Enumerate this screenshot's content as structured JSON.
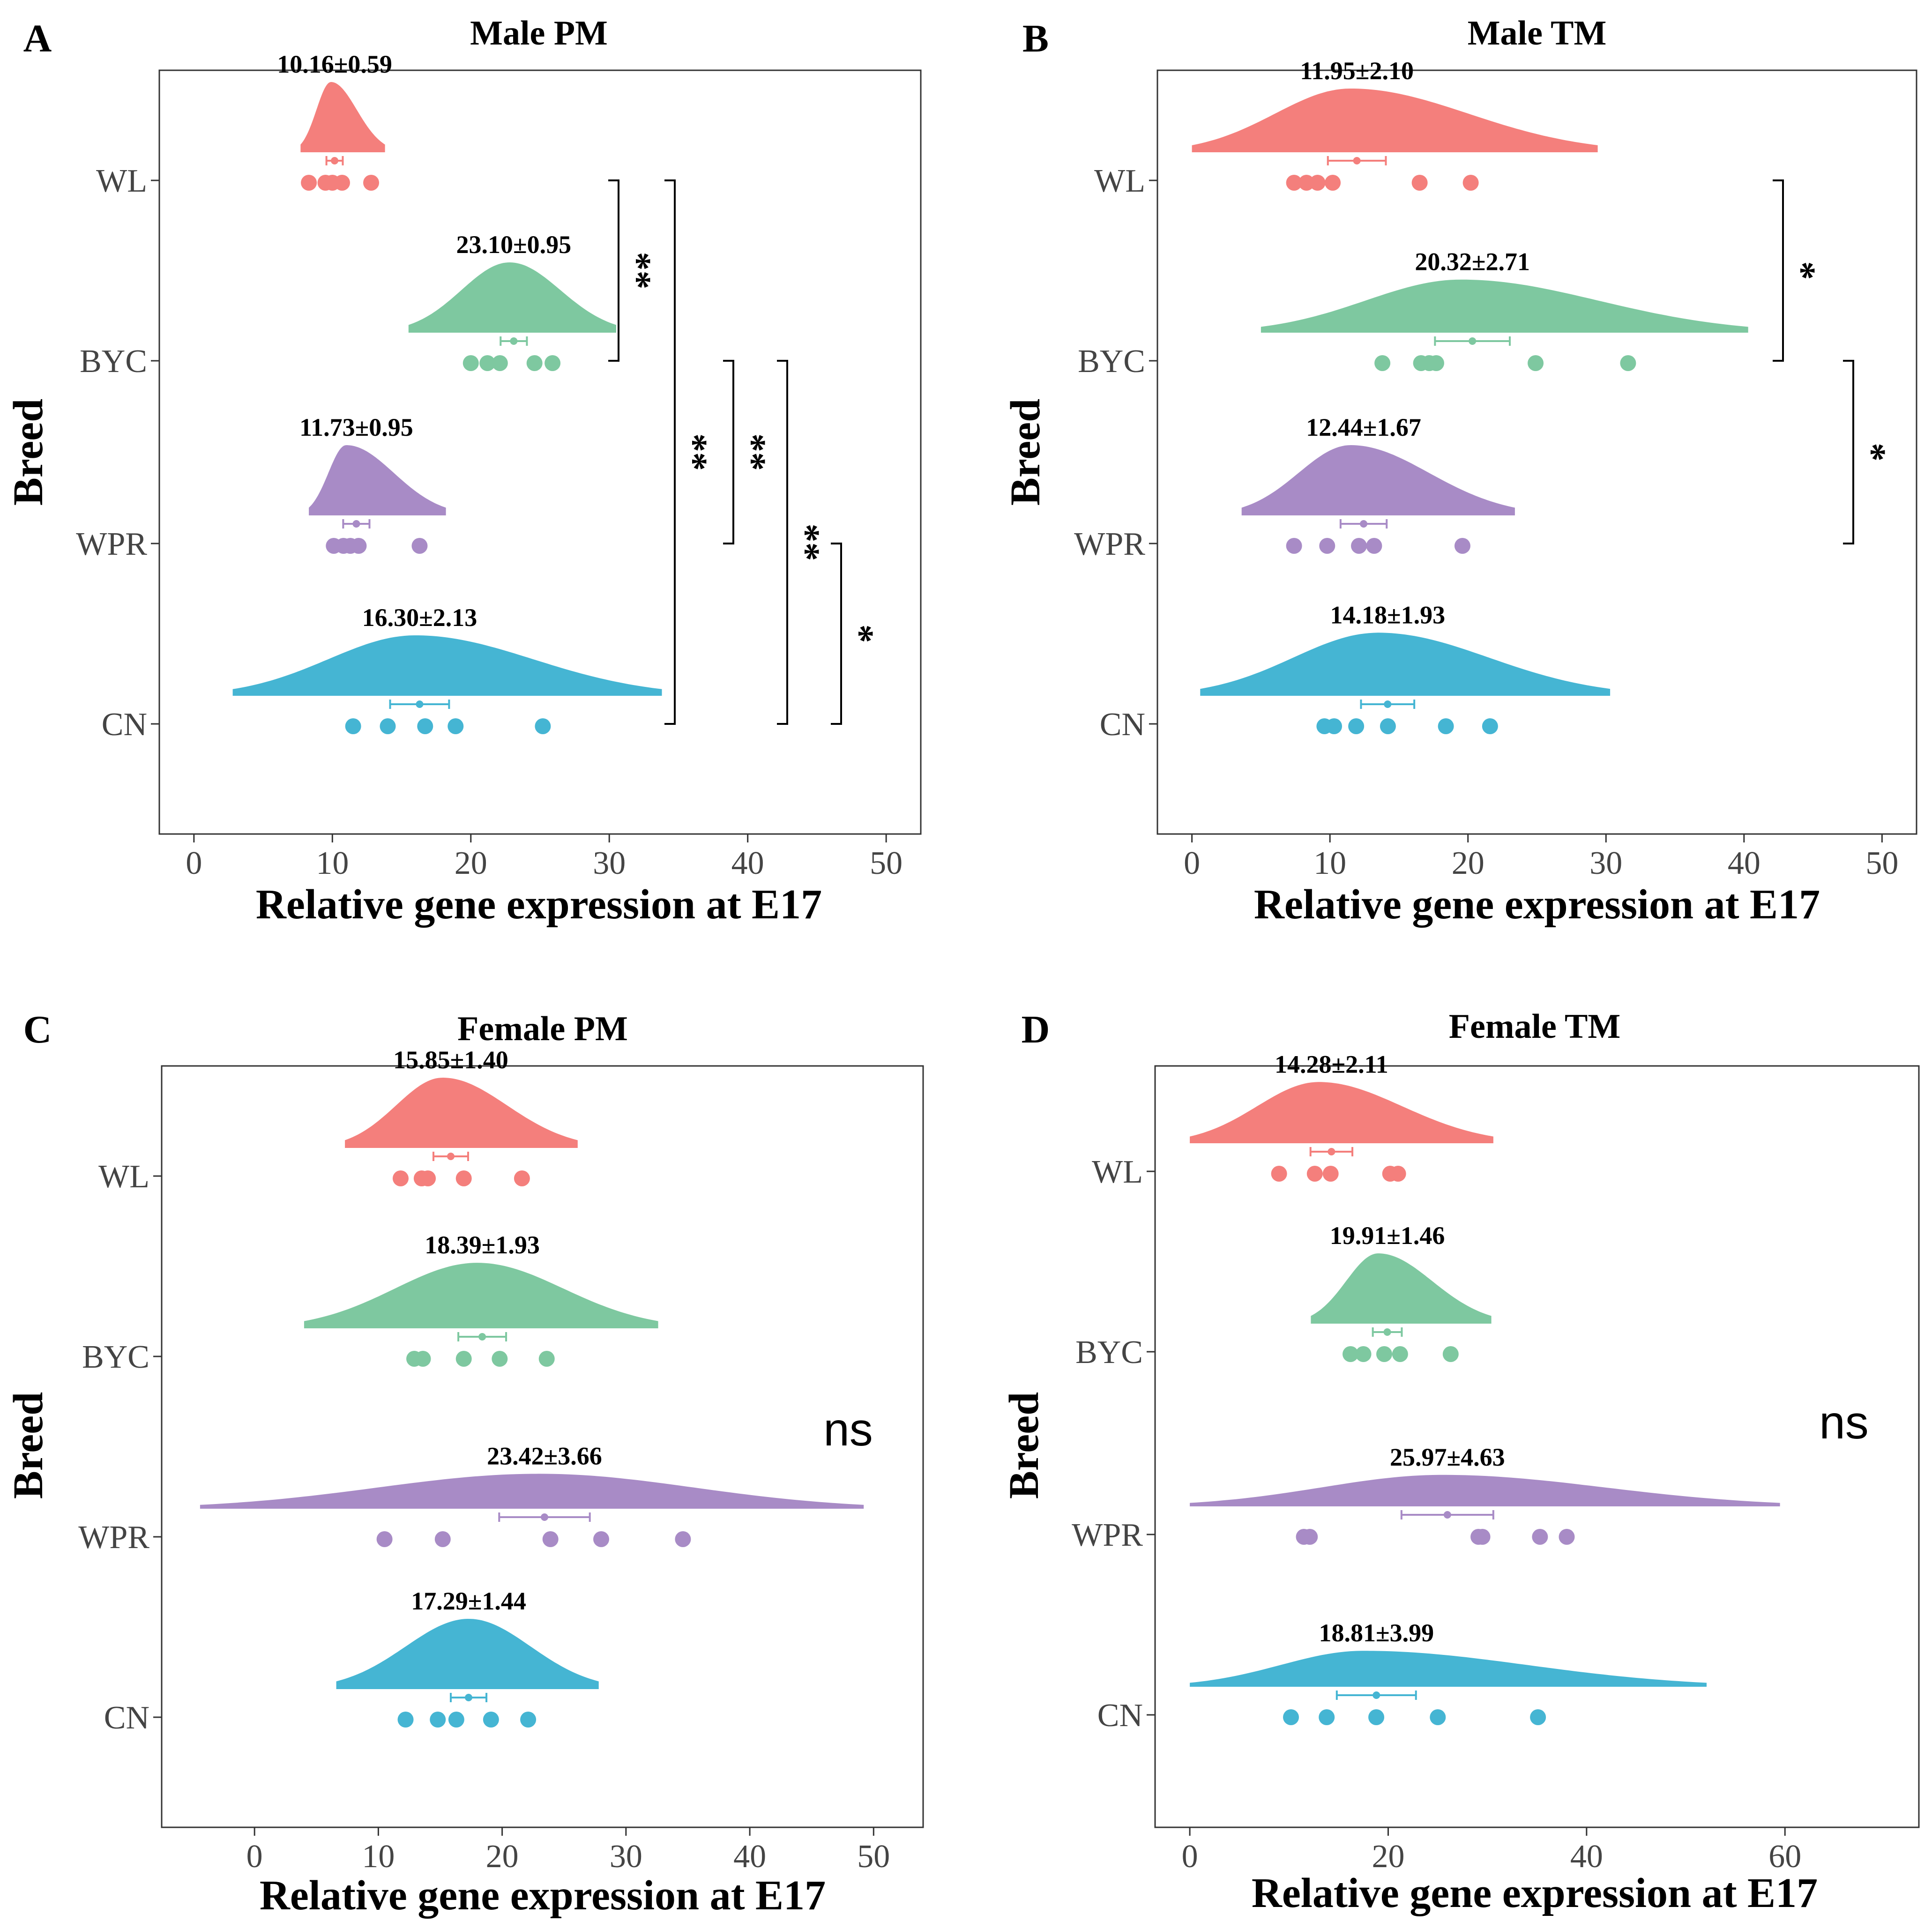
{
  "colors": {
    "WL": "#F47F7C",
    "BYC": "#7EC8A0",
    "WPR": "#A88BC6",
    "CN": "#45B5D3"
  },
  "chart_data": [
    {
      "type": "raincloud",
      "panel": "A",
      "title": "Male PM",
      "xlabel": "Relative gene expression at E17",
      "ylabel": "Breed",
      "xlim": [
        -2.5,
        52.5
      ],
      "xticks": [
        0,
        10,
        20,
        30,
        40,
        50
      ],
      "xtick_labels": [
        "0",
        "10",
        "20",
        "30",
        "40",
        "50"
      ],
      "categories": [
        "WL",
        "BYC",
        "WPR",
        "CN"
      ],
      "groups": [
        {
          "name": "WL",
          "label": "10.16±0.59",
          "mean": 10.16,
          "sem": 0.59,
          "points": [
            8.3,
            9.5,
            10.0,
            10.7,
            12.8
          ],
          "density_range": [
            7.7,
            13.8
          ],
          "density_peak": 9.9
        },
        {
          "name": "BYC",
          "label": "23.10±0.95",
          "mean": 23.1,
          "sem": 0.95,
          "points": [
            20.0,
            21.2,
            22.1,
            24.6,
            25.9
          ],
          "density_range": [
            15.5,
            30.5
          ],
          "density_peak": 22.8
        },
        {
          "name": "WPR",
          "label": "11.73±0.95",
          "mean": 11.73,
          "sem": 0.95,
          "points": [
            10.1,
            10.8,
            11.3,
            11.9,
            16.3
          ],
          "density_range": [
            8.3,
            18.2
          ],
          "density_peak": 11.0
        },
        {
          "name": "CN",
          "label": "16.30±2.13",
          "mean": 16.3,
          "sem": 2.13,
          "points": [
            11.5,
            14.0,
            16.7,
            18.9,
            25.2
          ],
          "density_range": [
            2.8,
            33.8
          ],
          "density_peak": 16.0
        }
      ],
      "significance": [
        {
          "from": "WL",
          "to": "BYC",
          "label": "**"
        },
        {
          "from": "WL",
          "to": "CN",
          "label": "**"
        },
        {
          "from": "BYC",
          "to": "WPR",
          "label": "**"
        },
        {
          "from": "BYC",
          "to": "CN",
          "label": "**"
        },
        {
          "from": "WPR",
          "to": "CN",
          "label": "*"
        }
      ],
      "annotation": ""
    },
    {
      "type": "raincloud",
      "panel": "B",
      "title": "Male TM",
      "xlabel": "Relative gene expression at E17",
      "ylabel": "Breed",
      "xlim": [
        -2.5,
        52.5
      ],
      "xticks": [
        0,
        10,
        20,
        30,
        40,
        50
      ],
      "xtick_labels": [
        "0",
        "10",
        "20",
        "30",
        "40",
        "50"
      ],
      "categories": [
        "WL",
        "BYC",
        "WPR",
        "CN"
      ],
      "groups": [
        {
          "name": "WL",
          "label": "11.95±2.10",
          "mean": 11.95,
          "sem": 2.1,
          "points": [
            7.4,
            8.3,
            9.1,
            10.2,
            16.5,
            20.2
          ],
          "density_range": [
            0.0,
            29.4
          ],
          "density_peak": 11.5
        },
        {
          "name": "BYC",
          "label": "20.32±2.71",
          "mean": 20.32,
          "sem": 2.71,
          "points": [
            13.8,
            16.6,
            17.2,
            17.7,
            24.9,
            31.6
          ],
          "density_range": [
            5.0,
            40.3
          ],
          "density_peak": 19.5
        },
        {
          "name": "WPR",
          "label": "12.44±1.67",
          "mean": 12.44,
          "sem": 1.67,
          "points": [
            7.4,
            9.8,
            12.1,
            13.2,
            19.6
          ],
          "density_range": [
            3.6,
            23.4
          ],
          "density_peak": 11.5
        },
        {
          "name": "CN",
          "label": "14.18±1.93",
          "mean": 14.18,
          "sem": 1.93,
          "points": [
            9.6,
            10.3,
            11.9,
            14.2,
            18.4,
            21.6
          ],
          "density_range": [
            0.6,
            30.3
          ],
          "density_peak": 13.5
        }
      ],
      "significance": [
        {
          "from": "WL",
          "to": "BYC",
          "label": "*"
        },
        {
          "from": "BYC",
          "to": "WPR",
          "label": "*"
        }
      ],
      "annotation": ""
    },
    {
      "type": "raincloud",
      "panel": "C",
      "title": "Female PM",
      "xlabel": "Relative gene expression at E17",
      "ylabel": "Breed",
      "xlim": [
        -7.5,
        54.0
      ],
      "xticks": [
        0,
        10,
        20,
        30,
        40,
        50
      ],
      "xtick_labels": [
        "0",
        "10",
        "20",
        "30",
        "40",
        "50"
      ],
      "categories": [
        "WL",
        "BYC",
        "WPR",
        "CN"
      ],
      "groups": [
        {
          "name": "WL",
          "label": "15.85±1.40",
          "mean": 15.85,
          "sem": 1.4,
          "points": [
            11.8,
            13.5,
            14.0,
            16.9,
            21.6
          ],
          "density_range": [
            7.3,
            26.1
          ],
          "density_peak": 15.2
        },
        {
          "name": "BYC",
          "label": "18.39±1.93",
          "mean": 18.39,
          "sem": 1.93,
          "points": [
            12.9,
            13.6,
            16.9,
            19.8,
            23.6
          ],
          "density_range": [
            4.0,
            32.6
          ],
          "density_peak": 18.0
        },
        {
          "name": "WPR",
          "label": "23.42±3.66",
          "mean": 23.42,
          "sem": 3.66,
          "points": [
            10.5,
            15.2,
            23.9,
            28.0,
            34.6
          ],
          "density_range": [
            -4.4,
            49.2
          ],
          "density_peak": 23.0
        },
        {
          "name": "CN",
          "label": "17.29±1.44",
          "mean": 17.29,
          "sem": 1.44,
          "points": [
            12.2,
            14.8,
            16.3,
            19.1,
            22.1
          ],
          "density_range": [
            6.6,
            27.8
          ],
          "density_peak": 17.3
        }
      ],
      "significance": [],
      "annotation": "ns"
    },
    {
      "type": "raincloud",
      "panel": "D",
      "title": "Female TM",
      "xlabel": "Relative gene expression at E17",
      "ylabel": "Breed",
      "xlim": [
        -3.5,
        73.5
      ],
      "xticks": [
        0,
        20,
        40,
        60
      ],
      "xtick_labels": [
        "0",
        "20",
        "40",
        "60"
      ],
      "categories": [
        "WL",
        "BYC",
        "WPR",
        "CN"
      ],
      "groups": [
        {
          "name": "WL",
          "label": "14.28±2.11",
          "mean": 14.28,
          "sem": 2.11,
          "points": [
            9.0,
            12.6,
            14.2,
            20.2,
            21.0
          ],
          "density_range": [
            0.0,
            30.6
          ],
          "density_peak": 13.0
        },
        {
          "name": "BYC",
          "label": "19.91±1.46",
          "mean": 19.91,
          "sem": 1.46,
          "points": [
            16.2,
            17.5,
            19.6,
            21.2,
            26.3
          ],
          "density_range": [
            12.2,
            30.4
          ],
          "density_peak": 19.0
        },
        {
          "name": "WPR",
          "label": "25.97±4.63",
          "mean": 25.97,
          "sem": 4.63,
          "points": [
            11.5,
            12.1,
            29.1,
            29.5,
            35.3,
            38.0
          ],
          "density_range": [
            0.0,
            59.5
          ],
          "density_peak": 25.5
        },
        {
          "name": "CN",
          "label": "18.81±3.99",
          "mean": 18.81,
          "sem": 3.99,
          "points": [
            10.2,
            13.8,
            18.8,
            25.0,
            35.1
          ],
          "density_range": [
            0.0,
            52.1
          ],
          "density_peak": 17.5
        }
      ],
      "significance": [],
      "annotation": "ns"
    }
  ]
}
